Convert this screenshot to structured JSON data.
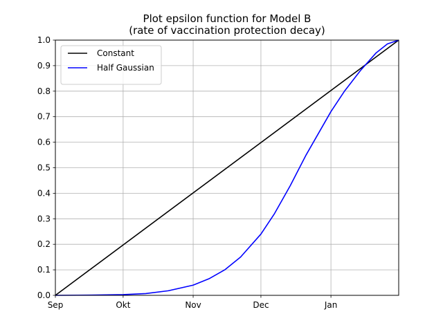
{
  "chart_data": {
    "type": "line",
    "title_line1": "Plot epsilon function for Model B",
    "title_line2": "(rate of vaccination protection decay)",
    "xlabel": "",
    "ylabel": "",
    "x_tick_labels": [
      "Sep",
      "Okt",
      "Nov",
      "Dec",
      "Jan"
    ],
    "x_ticks": [
      "2020-09-01",
      "2020-10-01",
      "2020-11-01",
      "2020-12-01",
      "2021-01-01"
    ],
    "xlim": [
      "2020-09-01",
      "2021-01-31"
    ],
    "ylim": [
      0,
      1.0
    ],
    "y_ticks": [
      0.0,
      0.1,
      0.2,
      0.3,
      0.4,
      0.5,
      0.6,
      0.7,
      0.8,
      0.9,
      1.0
    ],
    "y_tick_labels": [
      "0.0",
      "0.1",
      "0.2",
      "0.3",
      "0.4",
      "0.5",
      "0.6",
      "0.7",
      "0.8",
      "0.9",
      "1.0"
    ],
    "grid": true,
    "legend_position": "top-left",
    "series": [
      {
        "name": "Constant",
        "color": "#000000",
        "points": [
          {
            "x": "2020-09-01",
            "y": 0.0
          },
          {
            "x": "2021-01-31",
            "y": 1.0
          }
        ]
      },
      {
        "name": "Half Gaussian",
        "color": "#0000ff",
        "points": [
          {
            "x": "2020-09-01",
            "y": 0.0
          },
          {
            "x": "2020-09-16",
            "y": 0.001
          },
          {
            "x": "2020-10-01",
            "y": 0.003
          },
          {
            "x": "2020-10-11",
            "y": 0.007
          },
          {
            "x": "2020-10-21",
            "y": 0.018
          },
          {
            "x": "2020-11-01",
            "y": 0.04
          },
          {
            "x": "2020-11-08",
            "y": 0.065
          },
          {
            "x": "2020-11-15",
            "y": 0.1
          },
          {
            "x": "2020-11-22",
            "y": 0.15
          },
          {
            "x": "2020-12-01",
            "y": 0.24
          },
          {
            "x": "2020-12-07",
            "y": 0.32
          },
          {
            "x": "2020-12-14",
            "y": 0.43
          },
          {
            "x": "2020-12-21",
            "y": 0.55
          },
          {
            "x": "2021-01-01",
            "y": 0.72
          },
          {
            "x": "2021-01-07",
            "y": 0.8
          },
          {
            "x": "2021-01-14",
            "y": 0.88
          },
          {
            "x": "2021-01-21",
            "y": 0.95
          },
          {
            "x": "2021-01-26",
            "y": 0.985
          },
          {
            "x": "2021-01-31",
            "y": 1.0
          }
        ]
      }
    ]
  }
}
